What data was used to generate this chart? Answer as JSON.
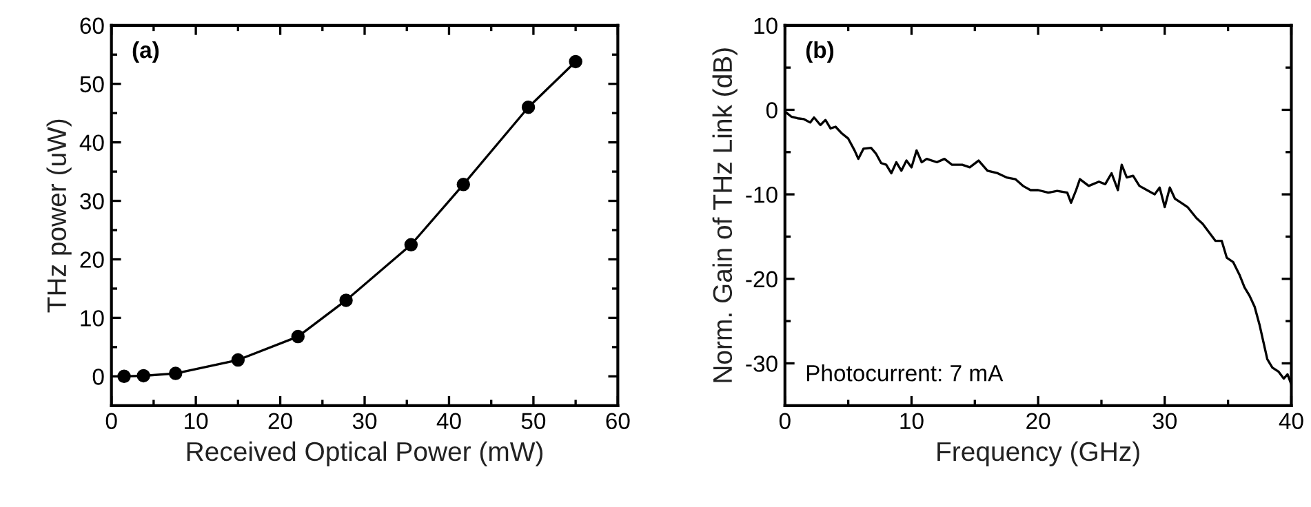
{
  "chart_data": [
    {
      "type": "line",
      "xlabel": "Received Optical Power (mW)",
      "ylabel": "THz power (uW)",
      "annotations": [
        "(a)"
      ],
      "marker": "circle",
      "line_style": "solid",
      "grid": false,
      "legend": false,
      "xlim": [
        0,
        60
      ],
      "ylim": [
        -5,
        60
      ],
      "xticks": [
        0,
        10,
        20,
        30,
        40,
        50,
        60
      ],
      "yticks": [
        0,
        10,
        20,
        30,
        40,
        50,
        60
      ],
      "series": [
        {
          "color": "#000000",
          "x": [
            1.5,
            3.8,
            7.6,
            15,
            22.1,
            27.8,
            35.5,
            41.7,
            49.4,
            55
          ],
          "values": [
            0,
            0.1,
            0.5,
            2.8,
            6.8,
            13,
            22.5,
            32.8,
            46,
            53.8
          ]
        }
      ]
    },
    {
      "type": "line",
      "xlabel": "Frequency (GHz)",
      "ylabel": "Norm. Gain of THz Link (dB)",
      "annotations": [
        "(b)",
        "Photocurrent: 7 mA"
      ],
      "marker": "none",
      "line_style": "solid",
      "grid": false,
      "legend": false,
      "xlim": [
        0,
        40
      ],
      "ylim": [
        -35,
        10
      ],
      "xticks": [
        0,
        10,
        20,
        30,
        40
      ],
      "yticks": [
        -30,
        -20,
        -10,
        0,
        10
      ],
      "series": [
        {
          "color": "#000000",
          "x": [
            0,
            0.5,
            1,
            1.5,
            2,
            2.3,
            2.8,
            3.2,
            3.6,
            4,
            4.5,
            5,
            5.5,
            5.8,
            6.2,
            6.8,
            7.2,
            7.6,
            8,
            8.4,
            8.8,
            9.2,
            9.6,
            10,
            10.4,
            10.8,
            11.2,
            12,
            12.6,
            13.2,
            14,
            14.6,
            15.3,
            16,
            16.8,
            17.5,
            18.2,
            18.8,
            19.4,
            20,
            20.8,
            21.5,
            22.3,
            22.6,
            23,
            23.3,
            24,
            24.8,
            25.3,
            25.8,
            26.3,
            26.6,
            27,
            27.5,
            28,
            28.6,
            29.2,
            29.6,
            30,
            30.4,
            30.8,
            31.3,
            31.8,
            32.5,
            33,
            33.5,
            34,
            34.5,
            34.9,
            35.4,
            35.9,
            36.3,
            36.7,
            37.1,
            37.5,
            37.8,
            38.1,
            38.5,
            39,
            39.4,
            39.7,
            40
          ],
          "values": [
            -0.2,
            -0.8,
            -1,
            -1.1,
            -1.5,
            -0.9,
            -1.8,
            -1.2,
            -2.2,
            -2,
            -2.8,
            -3.4,
            -4.8,
            -5.8,
            -4.6,
            -4.5,
            -5.2,
            -6.3,
            -6.5,
            -7.5,
            -6.2,
            -7.2,
            -6,
            -6.8,
            -4.8,
            -6.2,
            -5.8,
            -6.2,
            -5.8,
            -6.5,
            -6.5,
            -6.8,
            -6,
            -7.2,
            -7.5,
            -8,
            -8.2,
            -9,
            -9.5,
            -9.5,
            -9.8,
            -9.6,
            -9.8,
            -11,
            -9.5,
            -8.2,
            -9,
            -8.5,
            -8.8,
            -7.5,
            -9.5,
            -6.5,
            -8,
            -7.8,
            -9,
            -9.5,
            -10,
            -9.2,
            -11.5,
            -9.2,
            -10.5,
            -11,
            -11.5,
            -12.8,
            -13.5,
            -14.5,
            -15.5,
            -15.5,
            -17.5,
            -18,
            -19.5,
            -21,
            -22,
            -23.3,
            -25.5,
            -27.5,
            -29.5,
            -30.5,
            -31,
            -31.8,
            -31.3,
            -32.5
          ]
        }
      ]
    }
  ]
}
